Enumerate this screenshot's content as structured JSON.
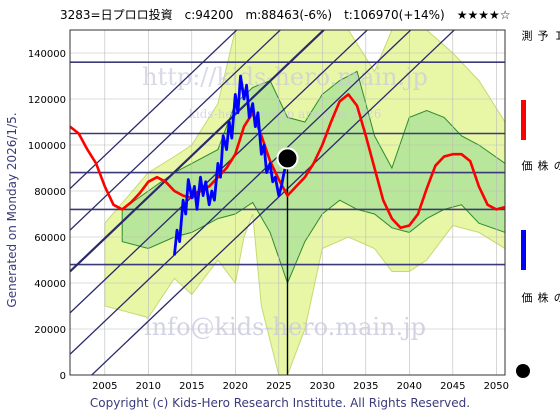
{
  "header": {
    "ticker": "3283=日プロロ投資",
    "current": "c:94200",
    "mean": "m:88463(-6%)",
    "target": "t:106970(+14%)",
    "stars": "★★★★☆"
  },
  "side_label": "Generated on Monday 2026/1/5.",
  "footer": "Copyright (c) Kids-Hero Research Institute. All Rights Reserved.",
  "watermarks": {
    "top": "http://kids-hero.main.jp",
    "middle": "kids-hero.main.jp  analysis  2026",
    "bottom": "info@kids-hero.main.jp"
  },
  "legend": [
    {
      "label": "ＡＩ予測",
      "color": "#ff0000",
      "kind": "line"
    },
    {
      "label": "過去の株価",
      "color": "#0000ff",
      "kind": "line"
    },
    {
      "label": "最新の株価",
      "color": "#000000",
      "kind": "dot"
    }
  ],
  "colors": {
    "band_outer": "#e8f7a6",
    "band_inner": "#b8e69a",
    "band_line": "#2e8b2e",
    "channel": "#2a2a6a",
    "hline": "#3a3a7a",
    "prediction": "#ff0000",
    "history": "#0000ff",
    "latest": "#000000"
  },
  "chart_data": {
    "type": "line",
    "xlim": [
      2001,
      2051
    ],
    "ylim": [
      0,
      150000
    ],
    "x_ticks": [
      2005,
      2010,
      2015,
      2020,
      2025,
      2030,
      2035,
      2040,
      2045,
      2050
    ],
    "y_ticks": [
      0,
      20000,
      40000,
      60000,
      80000,
      100000,
      120000,
      140000
    ],
    "horizontal_levels": [
      48000,
      72000,
      88000,
      105000,
      136000
    ],
    "latest_point": {
      "x": 2026.0,
      "y": 94200
    },
    "channel_lines": [
      {
        "x": [
          2001,
          2051
        ],
        "y": [
          45000,
          225000
        ]
      },
      {
        "x": [
          2001,
          2051
        ],
        "y": [
          63000,
          243000
        ]
      },
      {
        "x": [
          2001,
          2051
        ],
        "y": [
          27000,
          207000
        ]
      },
      {
        "x": [
          2001,
          2051
        ],
        "y": [
          9000,
          189000
        ]
      },
      {
        "x": [
          2001,
          2051
        ],
        "y": [
          -9000,
          171000
        ]
      },
      {
        "x": [
          2001,
          2051
        ],
        "y": [
          81000,
          261000
        ]
      }
    ],
    "band_outer_upper": {
      "x": [
        2005,
        2010,
        2013,
        2015,
        2018,
        2020,
        2021,
        2022,
        2023,
        2025,
        2026,
        2028,
        2030,
        2033,
        2036,
        2038,
        2040,
        2042,
        2045,
        2048,
        2051
      ],
      "y": [
        66000,
        88000,
        95000,
        100000,
        118000,
        150000,
        150000,
        150000,
        150000,
        150000,
        150000,
        150000,
        150000,
        150000,
        132000,
        150000,
        150000,
        150000,
        140000,
        128000,
        110000
      ]
    },
    "band_outer_lower": {
      "x": [
        2005,
        2010,
        2013,
        2015,
        2018,
        2020,
        2021,
        2022,
        2023,
        2025,
        2026,
        2028,
        2030,
        2033,
        2036,
        2038,
        2040,
        2042,
        2045,
        2048,
        2051
      ],
      "y": [
        30000,
        25000,
        42000,
        35000,
        50000,
        40000,
        60000,
        70000,
        30000,
        0,
        0,
        20000,
        55000,
        60000,
        55000,
        45000,
        45000,
        50000,
        65000,
        62000,
        55000
      ]
    },
    "band_inner_upper": {
      "x": [
        2007,
        2010,
        2013,
        2015,
        2018,
        2020,
        2022,
        2024,
        2026,
        2028,
        2030,
        2032,
        2034,
        2036,
        2038,
        2040,
        2042,
        2044,
        2046,
        2048,
        2051
      ],
      "y": [
        72000,
        80000,
        88000,
        92000,
        98000,
        118000,
        125000,
        128000,
        112000,
        110000,
        122000,
        128000,
        132000,
        104000,
        90000,
        112000,
        115000,
        112000,
        104000,
        100000,
        92000
      ]
    },
    "band_inner_lower": {
      "x": [
        2007,
        2010,
        2013,
        2015,
        2018,
        2020,
        2022,
        2024,
        2026,
        2028,
        2030,
        2032,
        2034,
        2036,
        2038,
        2040,
        2042,
        2044,
        2046,
        2048,
        2051
      ],
      "y": [
        58000,
        55000,
        60000,
        62000,
        68000,
        70000,
        75000,
        62000,
        40000,
        58000,
        70000,
        76000,
        72000,
        70000,
        64000,
        62000,
        68000,
        72000,
        74000,
        66000,
        62000
      ]
    },
    "series": [
      {
        "name": "ＡＩ予測",
        "x": [
          2001,
          2002,
          2003,
          2004,
          2005,
          2006,
          2007,
          2008,
          2009,
          2010,
          2011,
          2012,
          2013,
          2014,
          2015,
          2016,
          2017,
          2018,
          2019,
          2020,
          2021,
          2022,
          2023,
          2024,
          2025,
          2026,
          2027,
          2028,
          2029,
          2030,
          2031,
          2032,
          2033,
          2034,
          2035,
          2036,
          2037,
          2038,
          2039,
          2040,
          2041,
          2042,
          2043,
          2044,
          2045,
          2046,
          2047,
          2048,
          2049,
          2050,
          2051
        ],
        "y": [
          108000,
          105000,
          98000,
          92000,
          82000,
          74000,
          72000,
          75000,
          79000,
          84000,
          86000,
          84000,
          80000,
          78000,
          77000,
          80000,
          82000,
          86000,
          90000,
          96000,
          108000,
          114000,
          104000,
          93000,
          85000,
          78000,
          82000,
          86000,
          92000,
          100000,
          110000,
          119000,
          122000,
          117000,
          104000,
          90000,
          76000,
          68000,
          64000,
          65000,
          70000,
          81000,
          91000,
          95000,
          96000,
          96000,
          93000,
          82000,
          74000,
          72000,
          73000
        ]
      },
      {
        "name": "過去の株価",
        "x": [
          2013.0,
          2013.3,
          2013.6,
          2014.0,
          2014.3,
          2014.6,
          2015.0,
          2015.3,
          2015.6,
          2016.0,
          2016.3,
          2016.6,
          2017.0,
          2017.3,
          2017.6,
          2018.0,
          2018.3,
          2018.6,
          2019.0,
          2019.3,
          2019.6,
          2020.0,
          2020.3,
          2020.6,
          2021.0,
          2021.3,
          2021.6,
          2022.0,
          2022.3,
          2022.6,
          2023.0,
          2023.3,
          2023.6,
          2024.0,
          2024.3,
          2024.6,
          2025.0,
          2025.3,
          2025.6,
          2026.0
        ],
        "y": [
          52000,
          63000,
          58000,
          76000,
          70000,
          85000,
          77000,
          82000,
          72000,
          86000,
          78000,
          84000,
          74000,
          80000,
          76000,
          92000,
          86000,
          104000,
          98000,
          110000,
          103000,
          122000,
          114000,
          130000,
          120000,
          126000,
          112000,
          118000,
          108000,
          114000,
          96000,
          100000,
          88000,
          92000,
          84000,
          86000,
          78000,
          82000,
          88000,
          94200
        ]
      }
    ]
  }
}
